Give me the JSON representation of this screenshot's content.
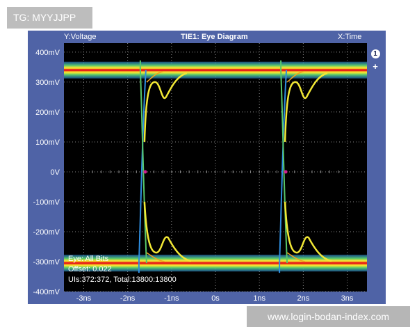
{
  "tag": "TG: MYYJJPP",
  "watermark": "www.login-bodan-index.com",
  "header": {
    "y_label": "Y:Voltage",
    "title": "TIE1: Eye Diagram",
    "x_label": "X:Time"
  },
  "side_buttons": {
    "marker": "1",
    "add": "+"
  },
  "info": {
    "line1": "Eye: All Bits",
    "line2": "Offset: 0.022",
    "line3": "UIs:372:372, Total:13800:13800"
  },
  "chart_data": {
    "type": "line",
    "title": "TIE1: Eye Diagram",
    "xlabel": "X:Time",
    "ylabel": "Y:Voltage",
    "x_unit": "ns",
    "y_unit": "mV",
    "xlim": [
      -3.45,
      3.45
    ],
    "ylim": [
      -400,
      430
    ],
    "x_ticks": [
      -3,
      -2,
      -1,
      0,
      1,
      2,
      3
    ],
    "x_tick_labels": [
      "-3ns",
      "-2ns",
      "-1ns",
      "0s",
      "1ns",
      "2ns",
      "3ns"
    ],
    "y_ticks": [
      400,
      300,
      200,
      100,
      0,
      -100,
      -200,
      -300,
      -400
    ],
    "y_tick_labels": [
      "400mV",
      "300mV",
      "200mV",
      "100mV",
      "0V",
      "-100mV",
      "-200mV",
      "-300mV",
      "-400mV"
    ],
    "grid": true,
    "levels": {
      "high_mV": 340,
      "low_mV": -305
    },
    "crossings_ns": [
      -1.6,
      1.6
    ],
    "crossing_level_mV": 0,
    "colors": {
      "background": "#000000",
      "grid": "#8a8a8a",
      "hot": "#e8201a",
      "warm": "#f5a21c",
      "mid": "#f2e835",
      "cool": "#57c76a",
      "cold": "#2e8ee0",
      "panel": "#4f63a6",
      "marker": "#d02090"
    }
  }
}
